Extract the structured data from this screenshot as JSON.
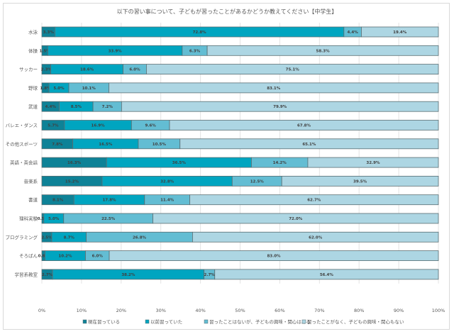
{
  "chart_data": {
    "type": "bar",
    "orientation": "horizontal",
    "stacked": "100%",
    "title": "以下の習い事について、子どもが習ったことがあるかどうか教えてください【中学生】",
    "categories": [
      "水泳",
      "体操",
      "サッカー",
      "野球",
      "武道",
      "バレエ・ダンス",
      "その他スポーツ",
      "英語・英会話",
      "音楽系",
      "書道",
      "理科実験",
      "プログラミング",
      "そろばん",
      "学習系教室"
    ],
    "series": [
      {
        "name": "現在習っている",
        "color": "#0e8297",
        "values": [
          3.3,
          1.5,
          2.3,
          1.8,
          4.4,
          5.7,
          7.8,
          16.3,
          15.2,
          8.1,
          0.5,
          2.5,
          0.8,
          2.7
        ]
      },
      {
        "name": "以前習っていた",
        "color": "#00a5c0",
        "values": [
          72.8,
          33.9,
          18.6,
          5.0,
          8.5,
          16.9,
          16.5,
          36.5,
          32.8,
          17.8,
          5.0,
          8.7,
          10.2,
          38.2
        ]
      },
      {
        "name": "習ったことはないが、子どもの興味・関心はある",
        "color": "#63bdd3",
        "values": [
          4.4,
          6.3,
          6.0,
          10.1,
          7.2,
          9.6,
          10.5,
          14.2,
          12.5,
          11.4,
          22.5,
          26.8,
          6.0,
          2.7
        ]
      },
      {
        "name": "習ったことがなく、子どもの興味・関心もない",
        "color": "#add6e3",
        "values": [
          19.4,
          58.3,
          75.1,
          83.1,
          79.9,
          67.8,
          65.1,
          32.9,
          39.5,
          62.7,
          72.0,
          62.0,
          83.0,
          56.4
        ]
      }
    ],
    "xlim": [
      0,
      100
    ],
    "xticks": [
      "0%",
      "10%",
      "20%",
      "30%",
      "40%",
      "50%",
      "60%",
      "70%",
      "80%",
      "90%",
      "100%"
    ],
    "grid": true,
    "legend": "bottom"
  }
}
